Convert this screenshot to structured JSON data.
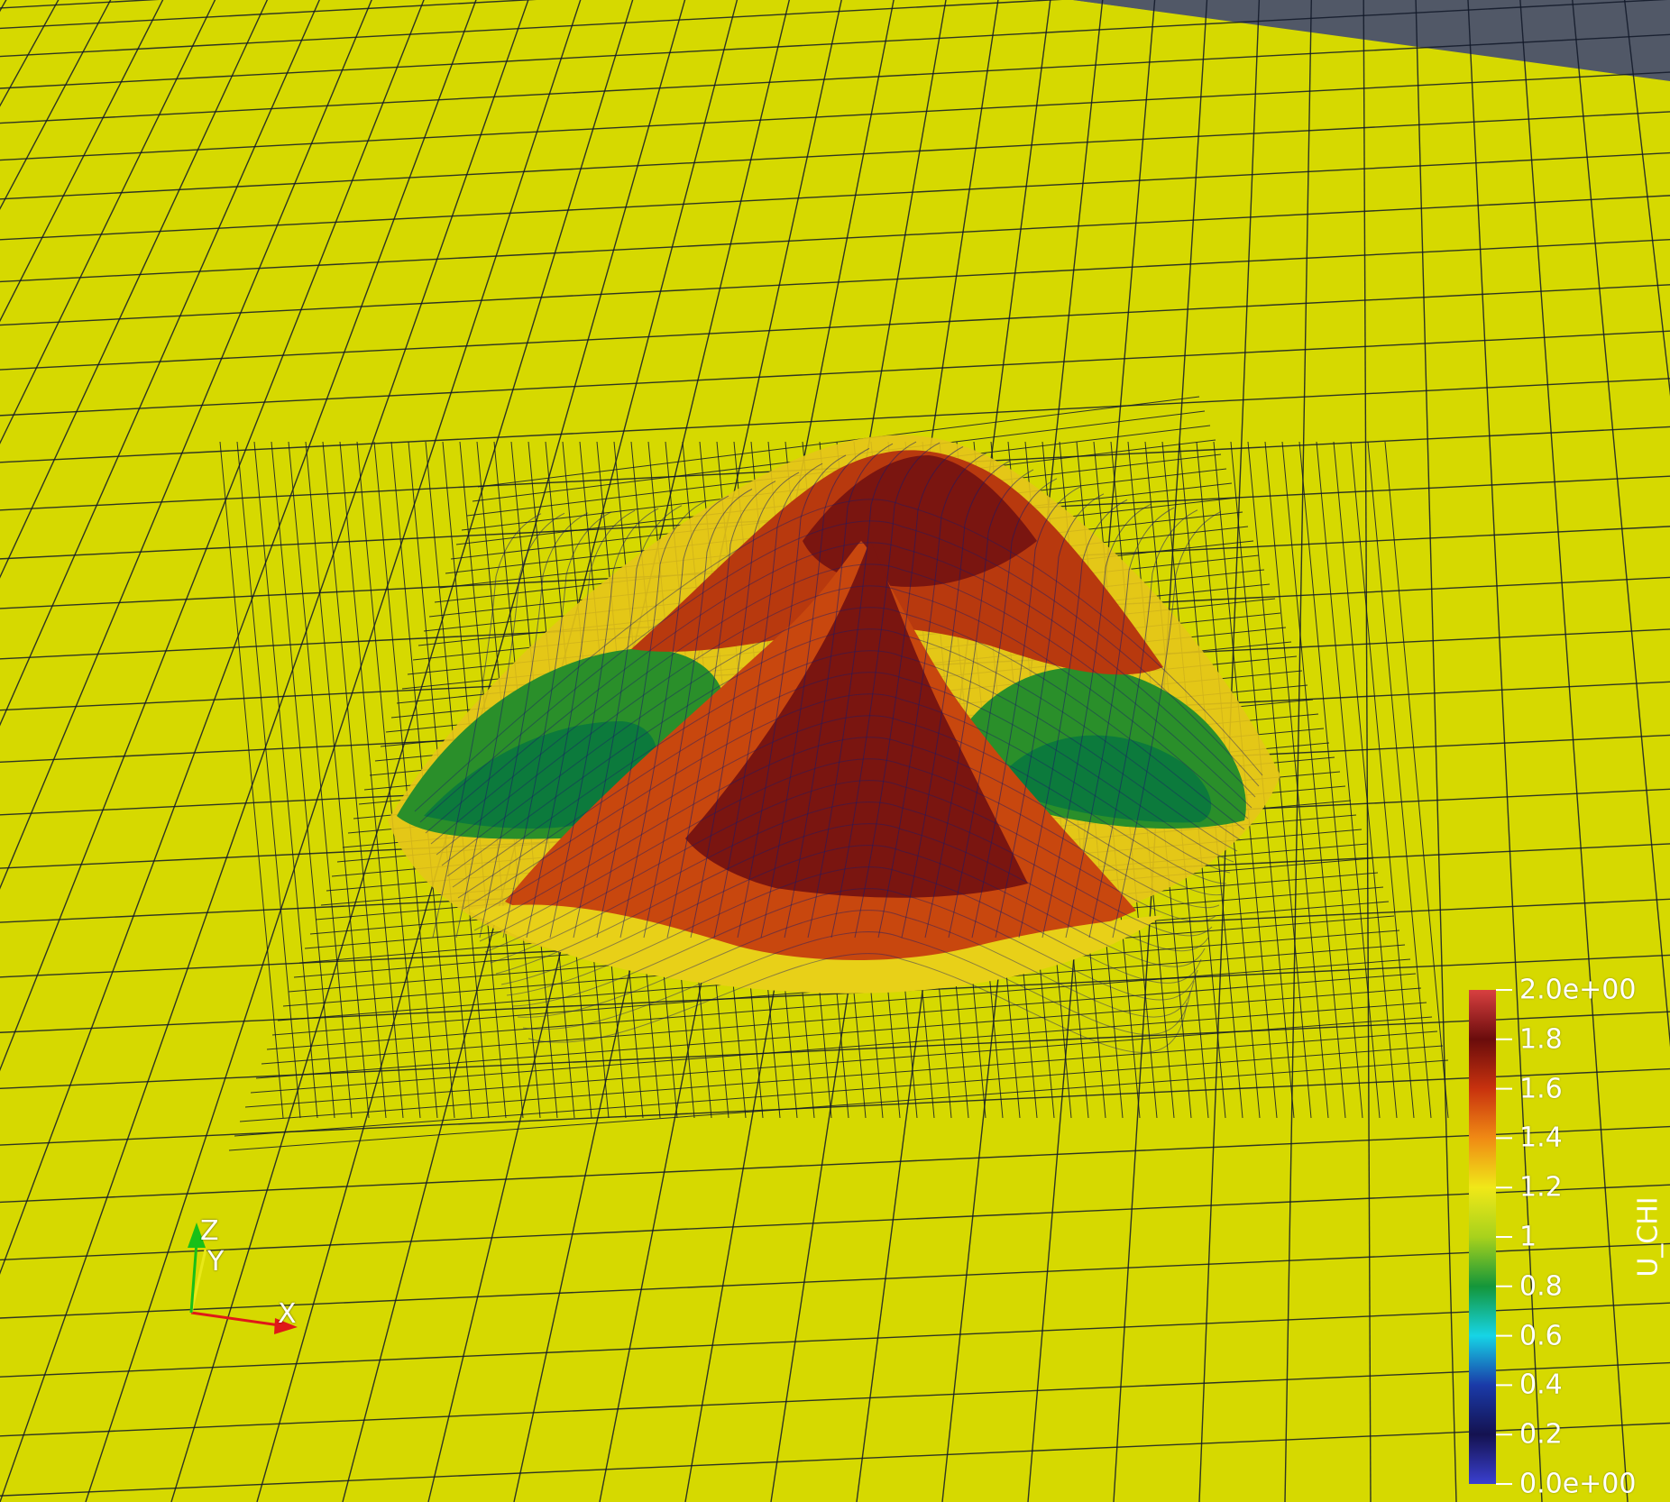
{
  "scene": {
    "background_color": "#515867",
    "plane_color": "#d6d900",
    "mesh_line_color": "#101828"
  },
  "scalar_bar": {
    "title": "U_CHI",
    "range": [
      0.0,
      2.0
    ],
    "labels": [
      "2.0e+00",
      "1.8",
      "1.6",
      "1.4",
      "1.2",
      "1",
      "0.8",
      "0.6",
      "0.4",
      "0.2",
      "0.0e+00"
    ],
    "colormap": [
      {
        "value": 0.0,
        "color": "#3a40d0"
      },
      {
        "value": 0.2,
        "color": "#141250"
      },
      {
        "value": 0.4,
        "color": "#1a3aa8"
      },
      {
        "value": 0.6,
        "color": "#16d4e6"
      },
      {
        "value": 0.8,
        "color": "#14963a"
      },
      {
        "value": 1.0,
        "color": "#a8d21c"
      },
      {
        "value": 1.2,
        "color": "#f0e818"
      },
      {
        "value": 1.4,
        "color": "#f08a14"
      },
      {
        "value": 1.6,
        "color": "#c8320e"
      },
      {
        "value": 1.8,
        "color": "#6a0c0c"
      },
      {
        "value": 2.0,
        "color": "#d84040"
      }
    ]
  },
  "orientation_axes": {
    "x_label": "X",
    "y_label": "Y",
    "z_label": "Z",
    "x_color": "#e01818",
    "y_color": "#e8e818",
    "z_color": "#18c018"
  }
}
